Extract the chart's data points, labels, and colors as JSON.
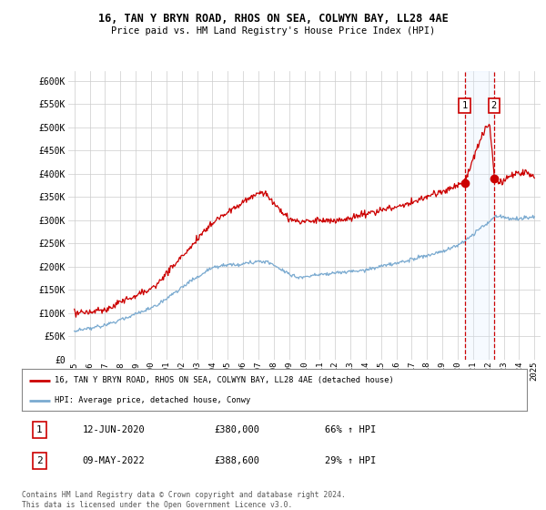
{
  "title1": "16, TAN Y BRYN ROAD, RHOS ON SEA, COLWYN BAY, LL28 4AE",
  "title2": "Price paid vs. HM Land Registry's House Price Index (HPI)",
  "legend_line1": "16, TAN Y BRYN ROAD, RHOS ON SEA, COLWYN BAY, LL28 4AE (detached house)",
  "legend_line2": "HPI: Average price, detached house, Conwy",
  "annotation1_label": "1",
  "annotation1_date": "12-JUN-2020",
  "annotation1_price": "£380,000",
  "annotation1_hpi": "66% ↑ HPI",
  "annotation2_label": "2",
  "annotation2_date": "09-MAY-2022",
  "annotation2_price": "£388,600",
  "annotation2_hpi": "29% ↑ HPI",
  "footer": "Contains HM Land Registry data © Crown copyright and database right 2024.\nThis data is licensed under the Open Government Licence v3.0.",
  "hpi_color": "#7aaad0",
  "price_color": "#cc0000",
  "annotation_color": "#cc0000",
  "shade_color": "#ddeeff",
  "bg_color": "#ffffff",
  "grid_color": "#cccccc",
  "ylim": [
    0,
    620000
  ],
  "yticks": [
    0,
    50000,
    100000,
    150000,
    200000,
    250000,
    300000,
    350000,
    400000,
    450000,
    500000,
    550000,
    600000
  ],
  "ytick_labels": [
    "£0",
    "£50K",
    "£100K",
    "£150K",
    "£200K",
    "£250K",
    "£300K",
    "£350K",
    "£400K",
    "£450K",
    "£500K",
    "£550K",
    "£600K"
  ],
  "sale1_year": 2020.45,
  "sale1_value": 380000,
  "sale2_year": 2022.36,
  "sale2_value": 388600,
  "xmin": 1994.6,
  "xmax": 2025.4,
  "xticks": [
    1995,
    1996,
    1997,
    1998,
    1999,
    2000,
    2001,
    2002,
    2003,
    2004,
    2005,
    2006,
    2007,
    2008,
    2009,
    2010,
    2011,
    2012,
    2013,
    2014,
    2015,
    2016,
    2017,
    2018,
    2019,
    2020,
    2021,
    2022,
    2023,
    2024,
    2025
  ]
}
